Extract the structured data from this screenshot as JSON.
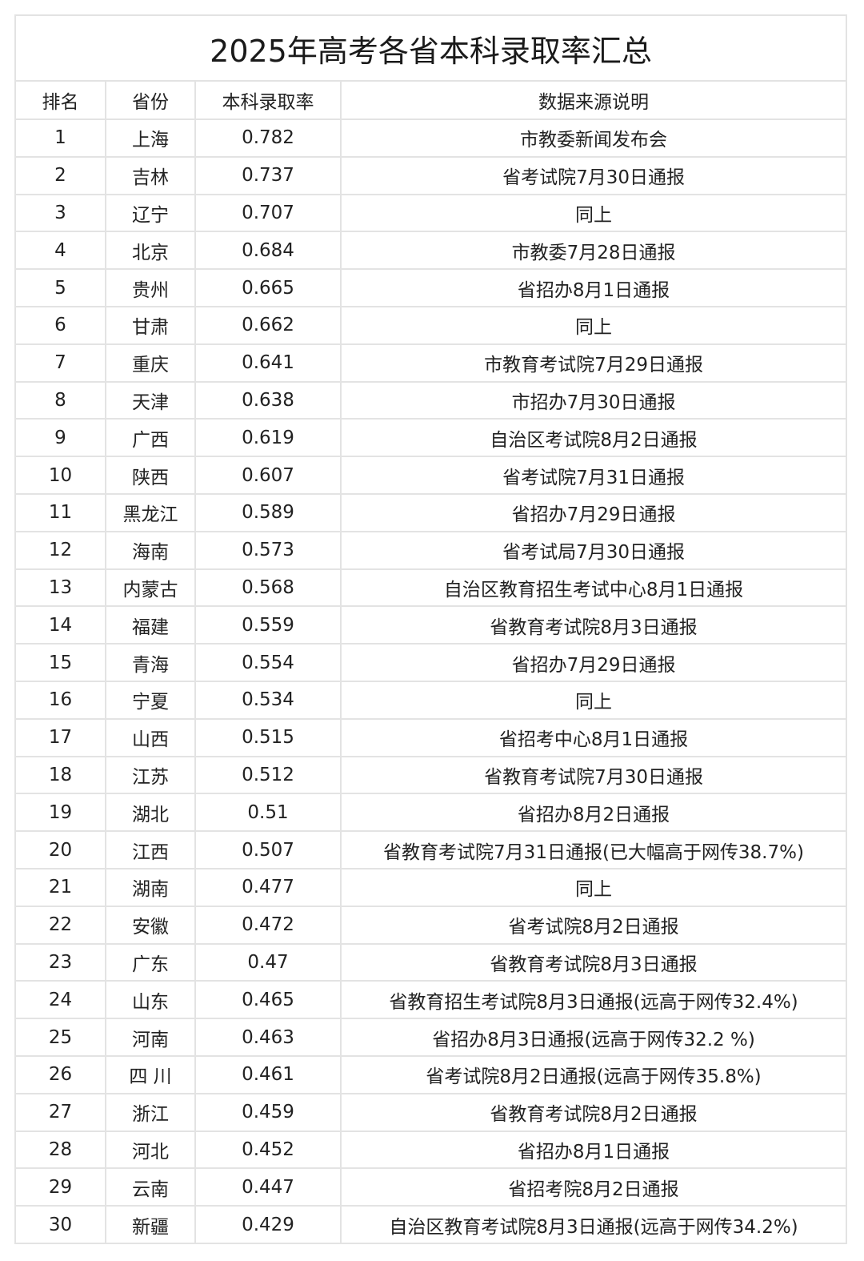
{
  "title": "2025年高考各省本科录取率汇总",
  "headers": [
    "排名",
    "省份",
    "本科录取率",
    "数据来源说明"
  ],
  "rows": [
    [
      "1",
      "上海",
      "0.782",
      "市教委新闻发布会"
    ],
    [
      "2",
      "吉林",
      "0.737",
      "省考试院7月30日通报"
    ],
    [
      "3",
      "辽宁",
      "0.707",
      "同上"
    ],
    [
      "4",
      "北京",
      "0.684",
      "市教委7月28日通报"
    ],
    [
      "5",
      "贵州",
      "0.665",
      "省招办8月1日通报"
    ],
    [
      "6",
      "甘肃",
      "0.662",
      "同上"
    ],
    [
      "7",
      "重庆",
      "0.641",
      "市教育考试院7月29日通报"
    ],
    [
      "8",
      "天津",
      "0.638",
      "市招办7月30日通报"
    ],
    [
      "9",
      "广西",
      "0.619",
      "自治区考试院8月2日通报"
    ],
    [
      "10",
      "陕西",
      "0.607",
      "省考试院7月31日通报"
    ],
    [
      "11",
      "黑龙江",
      "0.589",
      "省招办7月29日通报"
    ],
    [
      "12",
      "海南",
      "0.573",
      "省考试局7月30日通报"
    ],
    [
      "13",
      "内蒙古",
      "0.568",
      "自治区教育招生考试中心8月1日通报"
    ],
    [
      "14",
      "福建",
      "0.559",
      "省教育考试院8月3日通报"
    ],
    [
      "15",
      "青海",
      "0.554",
      "省招办7月29日通报"
    ],
    [
      "16",
      "宁夏",
      "0.534",
      "同上"
    ],
    [
      "17",
      "山西",
      "0.515",
      "省招考中心8月1日通报"
    ],
    [
      "18",
      "江苏",
      "0.512",
      "省教育考试院7月30日通报"
    ],
    [
      "19",
      "湖北",
      "0.51",
      "省招办8月2日通报"
    ],
    [
      "20",
      "江西",
      "0.507",
      "省教育考试院7月31日通报(已大幅高于网传38.7%)"
    ],
    [
      "21",
      "湖南",
      "0.477",
      "同上"
    ],
    [
      "22",
      "安徽",
      "0.472",
      "省考试院8月2日通报"
    ],
    [
      "23",
      "广东",
      "0.47",
      "省教育考试院8月3日通报"
    ],
    [
      "24",
      "山东",
      "0.465",
      "省教育招生考试院8月3日通报(远高于网传32.4%)"
    ],
    [
      "25",
      "河南",
      "0.463",
      "省招办8月3日通报(远高于网传32.2 %)"
    ],
    [
      "26",
      "四 川",
      "0.461",
      "省考试院8月2日通报(远高于网传35.8%)"
    ],
    [
      "27",
      "浙江",
      "0.459",
      "省教育考试院8月2日通报"
    ],
    [
      "28",
      "河北",
      "0.452",
      "省招办8月1日通报"
    ],
    [
      "29",
      "云南",
      "0.447",
      "省招考院8月2日通报"
    ],
    [
      "30",
      "新疆",
      "0.429",
      "自治区教育考试院8月3日通报(远高于网传34.2%)"
    ]
  ]
}
